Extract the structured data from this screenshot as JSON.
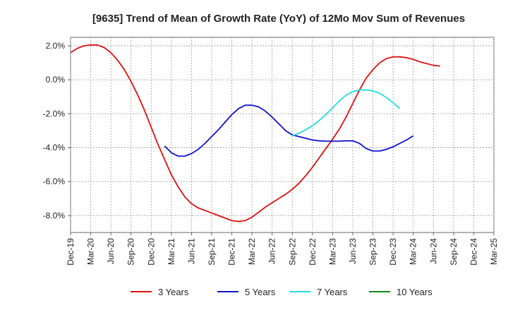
{
  "chart_data": {
    "type": "line",
    "title": "[9635]  Trend of Mean of Growth Rate (YoY) of 12Mo Mov Sum of Revenues",
    "xlabel": "",
    "ylabel": "",
    "ylim": [
      -9.0,
      2.5
    ],
    "y_ticks": [
      2.0,
      0.0,
      -2.0,
      -4.0,
      -6.0,
      -8.0
    ],
    "y_tick_labels": [
      "2.0%",
      "0.0%",
      "-2.0%",
      "-4.0%",
      "-6.0%",
      "-8.0%"
    ],
    "x_ticks": [
      "Dec-19",
      "Mar-20",
      "Jun-20",
      "Sep-20",
      "Dec-20",
      "Mar-21",
      "Jun-21",
      "Sep-21",
      "Dec-21",
      "Mar-22",
      "Jun-22",
      "Sep-22",
      "Dec-22",
      "Mar-23",
      "Jun-23",
      "Sep-23",
      "Dec-23",
      "Mar-24",
      "Jun-24",
      "Sep-24",
      "Dec-24",
      "Mar-25"
    ],
    "grid": true,
    "legend_position": "bottom",
    "series": [
      {
        "name": "3 Years",
        "color": "#dd1111",
        "x": [
          0,
          1,
          2,
          3,
          4,
          5,
          6,
          7,
          8,
          9,
          10,
          11,
          12,
          13,
          14,
          15,
          16,
          17,
          18,
          19,
          20,
          21,
          22,
          23,
          24,
          25,
          26,
          27,
          28,
          29,
          30,
          31,
          32,
          33,
          34,
          35,
          36,
          37,
          38,
          39,
          40,
          41,
          42,
          43,
          44,
          45,
          46,
          47,
          48,
          49,
          50,
          51,
          52,
          53,
          54,
          55,
          56,
          57,
          58,
          59,
          60
        ],
        "values": [
          1.6,
          1.85,
          2.0,
          2.05,
          2.05,
          1.9,
          1.6,
          1.15,
          0.6,
          -0.1,
          -0.9,
          -1.8,
          -2.8,
          -3.8,
          -4.7,
          -5.6,
          -6.3,
          -6.9,
          -7.3,
          -7.55,
          -7.7,
          -7.85,
          -8.0,
          -8.15,
          -8.3,
          -8.35,
          -8.3,
          -8.1,
          -7.8,
          -7.5,
          -7.25,
          -7.0,
          -6.75,
          -6.45,
          -6.1,
          -5.65,
          -5.15,
          -4.6,
          -4.05,
          -3.5,
          -2.9,
          -2.2,
          -1.4,
          -0.6,
          0.1,
          0.6,
          1.0,
          1.25,
          1.35,
          1.35,
          1.3,
          1.2,
          1.05,
          0.95,
          0.85,
          0.8,
          null,
          null,
          null,
          null,
          null
        ]
      },
      {
        "name": "5 Years",
        "color": "#1111cc",
        "x": [
          0,
          1,
          2,
          3,
          4,
          5,
          6,
          7,
          8,
          9,
          10,
          11,
          12,
          13,
          14,
          15,
          16,
          17,
          18,
          19,
          20,
          21,
          22,
          23,
          24,
          25,
          26,
          27,
          28,
          29,
          30,
          31,
          32,
          33,
          34,
          35,
          36,
          37,
          38,
          39,
          40,
          41,
          42,
          43,
          44,
          45,
          46,
          47,
          48,
          49,
          50,
          51,
          52,
          53,
          54,
          55,
          56,
          57,
          58,
          59,
          60
        ],
        "values": [
          null,
          null,
          null,
          null,
          null,
          null,
          null,
          null,
          null,
          null,
          null,
          null,
          null,
          null,
          -3.9,
          -4.3,
          -4.5,
          -4.5,
          -4.35,
          -4.1,
          -3.75,
          -3.35,
          -2.95,
          -2.5,
          -2.05,
          -1.7,
          -1.5,
          -1.5,
          -1.6,
          -1.85,
          -2.2,
          -2.6,
          -3.0,
          -3.25,
          -3.35,
          -3.45,
          -3.55,
          -3.6,
          -3.62,
          -3.62,
          -3.62,
          -3.6,
          -3.6,
          -3.75,
          -4.05,
          -4.2,
          -4.2,
          -4.1,
          -3.95,
          -3.75,
          -3.55,
          -3.3,
          null,
          null,
          null,
          null,
          null,
          null,
          null,
          null,
          null
        ]
      },
      {
        "name": "7 Years",
        "color": "#22dddd",
        "x": [
          0,
          1,
          2,
          3,
          4,
          5,
          6,
          7,
          8,
          9,
          10,
          11,
          12,
          13,
          14,
          15,
          16,
          17,
          18,
          19,
          20,
          21,
          22,
          23,
          24,
          25,
          26,
          27,
          28,
          29,
          30,
          31,
          32,
          33,
          34,
          35,
          36,
          37,
          38,
          39,
          40,
          41,
          42,
          43,
          44,
          45,
          46,
          47,
          48,
          49,
          50,
          51,
          52,
          53,
          54,
          55,
          56,
          57,
          58,
          59,
          60
        ],
        "values": [
          null,
          null,
          null,
          null,
          null,
          null,
          null,
          null,
          null,
          null,
          null,
          null,
          null,
          null,
          null,
          null,
          null,
          null,
          null,
          null,
          null,
          null,
          null,
          null,
          null,
          null,
          null,
          null,
          null,
          null,
          null,
          null,
          null,
          -3.3,
          -3.15,
          -2.95,
          -2.7,
          -2.4,
          -2.05,
          -1.65,
          -1.25,
          -0.9,
          -0.7,
          -0.6,
          -0.6,
          -0.65,
          -0.8,
          -1.05,
          -1.35,
          -1.7,
          null,
          null,
          null,
          null,
          null,
          null,
          null,
          null,
          null,
          null,
          null
        ]
      },
      {
        "name": "10 Years",
        "color": "#118811",
        "x": [],
        "values": []
      }
    ]
  }
}
